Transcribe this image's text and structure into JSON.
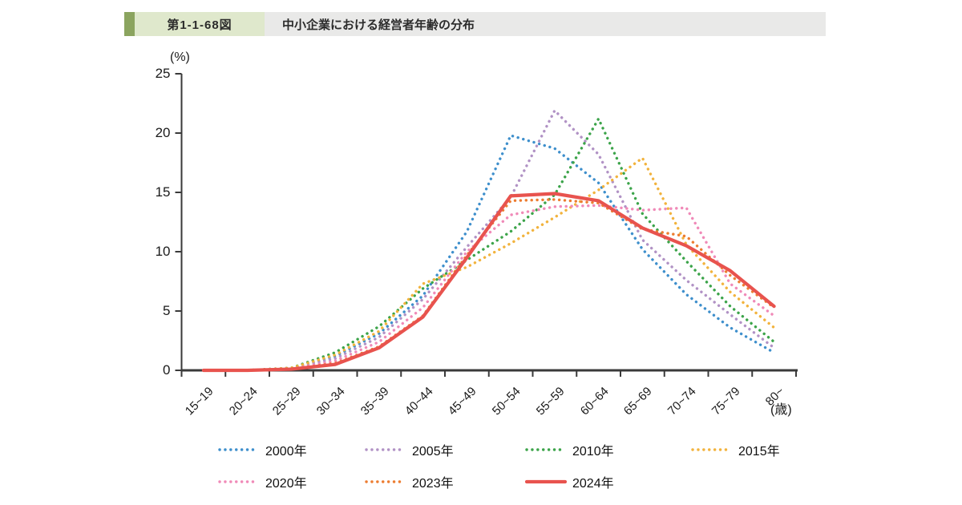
{
  "header": {
    "figure_label": "第1-1-68図",
    "title": "中小企業における経営者年齢の分布",
    "accent_color": "#8ba45f",
    "label_bg_color": "#dfe8cc",
    "strip_bg_color": "#e9e9e8"
  },
  "chart_data": {
    "type": "line",
    "title": "中小企業における経営者年齢の分布",
    "y_axis_unit_label": "(%)",
    "x_axis_unit_label": "(歳)",
    "ylim": [
      0,
      25
    ],
    "y_ticks": [
      0,
      5,
      10,
      15,
      20,
      25
    ],
    "grid": false,
    "legend_position": "bottom",
    "axis_color": "#3a3a3a",
    "categories": [
      "15~19",
      "20~24",
      "25~29",
      "30~34",
      "35~39",
      "40~44",
      "45~49",
      "50~54",
      "55~59",
      "60~64",
      "65~69",
      "70~74",
      "75~79",
      "80~"
    ],
    "series": [
      {
        "name": "2000年",
        "color": "#3e8fcc",
        "style": "dotted",
        "values": [
          0.0,
          0.0,
          0.2,
          1.2,
          3.1,
          6.3,
          11.7,
          19.8,
          18.7,
          15.8,
          10.2,
          6.4,
          3.6,
          1.5
        ]
      },
      {
        "name": "2005年",
        "color": "#b192c5",
        "style": "dotted",
        "values": [
          0.0,
          0.0,
          0.2,
          1.0,
          2.8,
          6.0,
          10.4,
          14.6,
          21.9,
          18.2,
          11.0,
          7.6,
          4.7,
          1.9
        ]
      },
      {
        "name": "2010年",
        "color": "#3ca44a",
        "style": "dotted",
        "values": [
          0.0,
          0.0,
          0.2,
          1.5,
          3.7,
          6.9,
          9.3,
          11.7,
          14.8,
          21.2,
          13.2,
          9.2,
          5.4,
          2.4
        ]
      },
      {
        "name": "2015年",
        "color": "#f2b33d",
        "style": "dotted",
        "values": [
          0.0,
          0.0,
          0.2,
          1.3,
          3.3,
          7.3,
          8.7,
          10.7,
          12.9,
          15.2,
          17.9,
          10.6,
          6.6,
          3.6
        ]
      },
      {
        "name": "2020年",
        "color": "#f08ab8",
        "style": "dotted",
        "values": [
          0.0,
          0.0,
          0.1,
          0.8,
          2.4,
          5.3,
          10.0,
          13.1,
          13.8,
          13.9,
          13.5,
          13.7,
          7.3,
          4.6
        ]
      },
      {
        "name": "2023年",
        "color": "#ed7d31",
        "style": "dotted",
        "values": [
          0.0,
          0.0,
          0.1,
          0.6,
          2.0,
          4.6,
          9.7,
          14.3,
          14.4,
          14.1,
          11.9,
          11.3,
          8.0,
          5.3
        ]
      },
      {
        "name": "2024年",
        "color": "#e8534e",
        "style": "solid",
        "values": [
          0.0,
          0.0,
          0.1,
          0.5,
          1.9,
          4.5,
          9.5,
          14.7,
          14.9,
          14.3,
          12.0,
          10.5,
          8.4,
          5.4
        ]
      }
    ]
  }
}
